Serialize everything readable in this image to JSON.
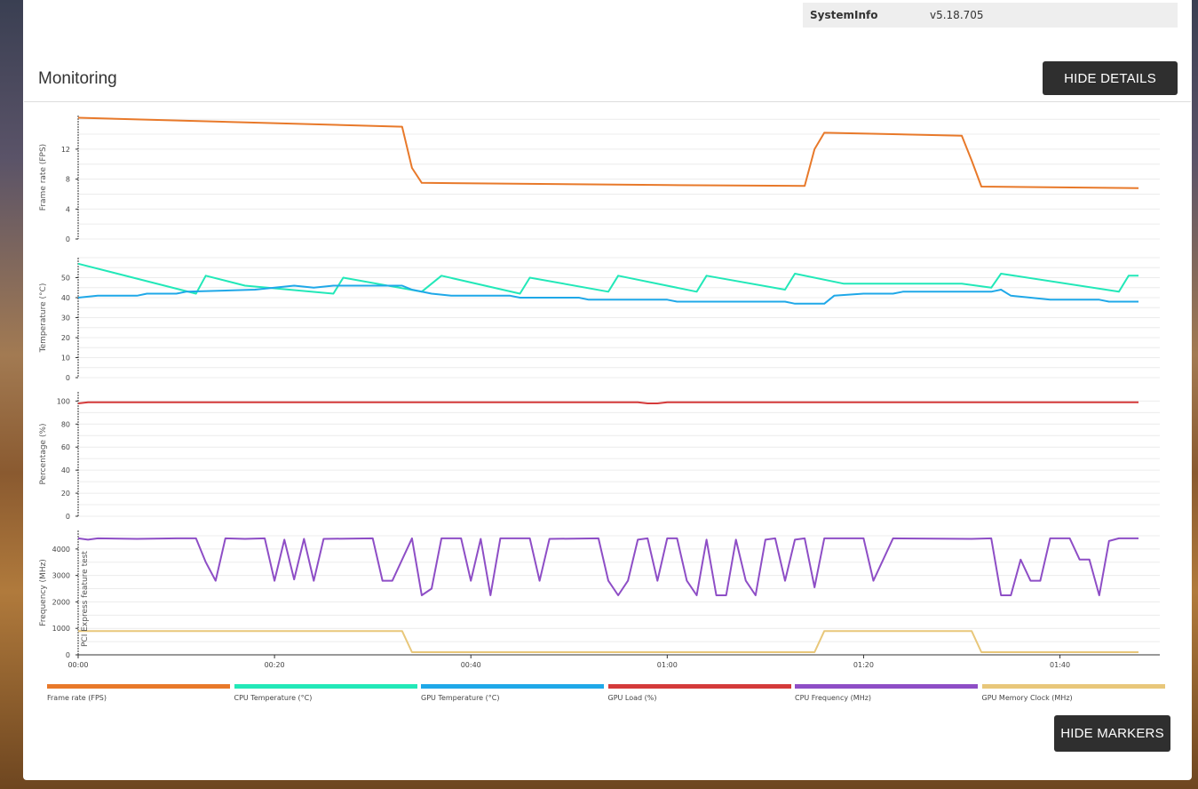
{
  "system_info": {
    "key": "SystemInfo",
    "value": "v5.18.705"
  },
  "section_title": "Monitoring",
  "buttons": {
    "hide_details": "HIDE DETAILS",
    "hide_markers": "HIDE MARKERS"
  },
  "marker_label": "PCI Express feature test",
  "chart_data": {
    "type": "line",
    "x_ticks": [
      "00:00",
      "00:20",
      "00:40",
      "01:00",
      "01:20",
      "01:40"
    ],
    "x_tick_seconds": [
      0,
      1200,
      2400,
      3600,
      4800,
      6000
    ],
    "x_range_seconds": [
      0,
      6480
    ],
    "panels": [
      {
        "ylabel": "Frame rate (FPS)",
        "yticks": [
          0,
          4,
          8,
          12
        ],
        "ylim": [
          0,
          16.5
        ],
        "series": [
          {
            "name": "Frame rate (FPS)",
            "color": "#e8792a",
            "points": [
              [
                0,
                16.2
              ],
              [
                1980,
                15.0
              ],
              [
                2040,
                9.5
              ],
              [
                2100,
                7.5
              ],
              [
                3600,
                7.2
              ],
              [
                4440,
                7.1
              ],
              [
                4500,
                12.0
              ],
              [
                4560,
                14.2
              ],
              [
                5400,
                13.8
              ],
              [
                5460,
                10.5
              ],
              [
                5520,
                7.0
              ],
              [
                6480,
                6.8
              ]
            ]
          }
        ]
      },
      {
        "ylabel": "Temperature (°C)",
        "yticks": [
          0,
          10,
          20,
          30,
          40,
          50
        ],
        "ylim": [
          0,
          60
        ],
        "series": [
          {
            "name": "CPU Temperature (°C)",
            "color": "#22e8b8",
            "points": [
              [
                0,
                57
              ],
              [
                720,
                42
              ],
              [
                780,
                51
              ],
              [
                1020,
                46
              ],
              [
                1560,
                42
              ],
              [
                1620,
                50
              ],
              [
                2100,
                43
              ],
              [
                2220,
                51
              ],
              [
                2700,
                42
              ],
              [
                2760,
                50
              ],
              [
                3240,
                43
              ],
              [
                3300,
                51
              ],
              [
                3780,
                43
              ],
              [
                3840,
                51
              ],
              [
                4320,
                44
              ],
              [
                4380,
                52
              ],
              [
                4680,
                47
              ],
              [
                5400,
                47
              ],
              [
                5580,
                45
              ],
              [
                5640,
                52
              ],
              [
                6360,
                43
              ],
              [
                6420,
                51
              ],
              [
                6480,
                51
              ]
            ]
          },
          {
            "name": "GPU Temperature (°C)",
            "color": "#1fa8e8",
            "points": [
              [
                0,
                40
              ],
              [
                120,
                41
              ],
              [
                360,
                41
              ],
              [
                420,
                42
              ],
              [
                600,
                42
              ],
              [
                660,
                43
              ],
              [
                1080,
                44
              ],
              [
                1200,
                45
              ],
              [
                1320,
                46
              ],
              [
                1440,
                45
              ],
              [
                1560,
                46
              ],
              [
                1980,
                46
              ],
              [
                2040,
                44
              ],
              [
                2160,
                42
              ],
              [
                2280,
                41
              ],
              [
                2640,
                41
              ],
              [
                2700,
                40
              ],
              [
                3060,
                40
              ],
              [
                3120,
                39
              ],
              [
                3600,
                39
              ],
              [
                3660,
                38
              ],
              [
                4320,
                38
              ],
              [
                4380,
                37
              ],
              [
                4560,
                37
              ],
              [
                4620,
                41
              ],
              [
                4800,
                42
              ],
              [
                4980,
                42
              ],
              [
                5040,
                43
              ],
              [
                5580,
                43
              ],
              [
                5640,
                44
              ],
              [
                5700,
                41
              ],
              [
                5820,
                40
              ],
              [
                5940,
                39
              ],
              [
                6240,
                39
              ],
              [
                6300,
                38
              ],
              [
                6480,
                38
              ]
            ]
          }
        ]
      },
      {
        "ylabel": "Percentage (%)",
        "yticks": [
          0,
          20,
          40,
          60,
          80,
          100
        ],
        "ylim": [
          0,
          108
        ],
        "series": [
          {
            "name": "GPU Load (%)",
            "color": "#d43a3a",
            "points": [
              [
                0,
                98
              ],
              [
                60,
                99
              ],
              [
                3420,
                99
              ],
              [
                3480,
                98
              ],
              [
                3540,
                98
              ],
              [
                3600,
                99
              ],
              [
                6480,
                99
              ]
            ]
          }
        ]
      },
      {
        "ylabel": "Frequency (MHz)",
        "yticks": [
          0,
          1000,
          2000,
          3000,
          4000
        ],
        "ylim": [
          0,
          4700
        ],
        "series": [
          {
            "name": "CPU Frequency (MHz)",
            "color": "#8e4ec6",
            "points": [
              [
                0,
                4400
              ],
              [
                60,
                4350
              ],
              [
                120,
                4400
              ],
              [
                360,
                4380
              ],
              [
                600,
                4400
              ],
              [
                720,
                4400
              ],
              [
                780,
                3500
              ],
              [
                840,
                2800
              ],
              [
                900,
                4400
              ],
              [
                1020,
                4380
              ],
              [
                1140,
                4400
              ],
              [
                1200,
                2800
              ],
              [
                1260,
                4350
              ],
              [
                1320,
                2850
              ],
              [
                1380,
                4380
              ],
              [
                1440,
                2800
              ],
              [
                1500,
                4380
              ],
              [
                1800,
                4400
              ],
              [
                1860,
                2800
              ],
              [
                1920,
                2800
              ],
              [
                2040,
                4400
              ],
              [
                2100,
                2250
              ],
              [
                2160,
                2500
              ],
              [
                2220,
                4400
              ],
              [
                2340,
                4400
              ],
              [
                2400,
                2800
              ],
              [
                2460,
                4380
              ],
              [
                2520,
                2250
              ],
              [
                2580,
                4400
              ],
              [
                2760,
                4400
              ],
              [
                2820,
                2800
              ],
              [
                2880,
                4380
              ],
              [
                3180,
                4400
              ],
              [
                3240,
                2800
              ],
              [
                3300,
                2250
              ],
              [
                3360,
                2800
              ],
              [
                3420,
                4350
              ],
              [
                3480,
                4400
              ],
              [
                3540,
                2800
              ],
              [
                3600,
                4400
              ],
              [
                3660,
                4400
              ],
              [
                3720,
                2800
              ],
              [
                3780,
                2250
              ],
              [
                3840,
                4350
              ],
              [
                3900,
                2250
              ],
              [
                3960,
                2250
              ],
              [
                4020,
                4350
              ],
              [
                4080,
                2800
              ],
              [
                4140,
                2250
              ],
              [
                4200,
                4350
              ],
              [
                4260,
                4400
              ],
              [
                4320,
                2800
              ],
              [
                4380,
                4350
              ],
              [
                4440,
                4400
              ],
              [
                4500,
                2550
              ],
              [
                4560,
                4400
              ],
              [
                4800,
                4400
              ],
              [
                4860,
                2800
              ],
              [
                4980,
                4400
              ],
              [
                5460,
                4380
              ],
              [
                5580,
                4400
              ],
              [
                5640,
                2250
              ],
              [
                5700,
                2250
              ],
              [
                5760,
                3600
              ],
              [
                5820,
                2800
              ],
              [
                5880,
                2800
              ],
              [
                5940,
                4400
              ],
              [
                6060,
                4400
              ],
              [
                6120,
                3600
              ],
              [
                6180,
                3600
              ],
              [
                6240,
                2250
              ],
              [
                6300,
                4300
              ],
              [
                6360,
                4400
              ],
              [
                6480,
                4400
              ]
            ]
          },
          {
            "name": "GPU Memory Clock (MHz)",
            "color": "#e8c77a",
            "points": [
              [
                0,
                900
              ],
              [
                1980,
                900
              ],
              [
                2040,
                100
              ],
              [
                4500,
                100
              ],
              [
                4560,
                900
              ],
              [
                5460,
                900
              ],
              [
                5520,
                100
              ],
              [
                6480,
                100
              ]
            ]
          }
        ]
      }
    ],
    "legend": [
      "Frame rate (FPS)",
      "CPU Temperature (°C)",
      "GPU Temperature (°C)",
      "GPU Load (%)",
      "CPU Frequency (MHz)",
      "GPU Memory Clock (MHz)"
    ],
    "legend_colors": [
      "#e8792a",
      "#22e8b8",
      "#1fa8e8",
      "#d43a3a",
      "#8e4ec6",
      "#e8c77a"
    ],
    "grid": true,
    "legend_position": "bottom"
  }
}
